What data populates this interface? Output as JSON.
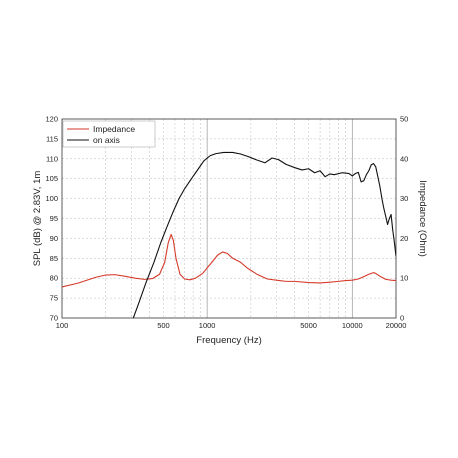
{
  "chart_data": {
    "type": "line",
    "xlabel": "Frequency (Hz)",
    "ylabel": "SPL (dB) @ 2.83V, 1m",
    "y2label": "Impedance (Ohm)",
    "xscale": "log",
    "xlim": [
      100,
      20000
    ],
    "ylim": [
      70,
      120
    ],
    "y2lim": [
      0,
      50
    ],
    "x_ticks": [
      {
        "value": 100,
        "label": "100"
      },
      {
        "value": 500,
        "label": "500"
      },
      {
        "value": 1000,
        "label": "1000"
      },
      {
        "value": 5000,
        "label": "5000"
      },
      {
        "value": 10000,
        "label": "10000"
      },
      {
        "value": 20000,
        "label": "20000"
      }
    ],
    "y_ticks": [
      "70",
      "75",
      "80",
      "85",
      "90",
      "95",
      "100",
      "105",
      "110",
      "115",
      "120"
    ],
    "y2_ticks": [
      "0",
      "10",
      "20",
      "30",
      "40",
      "50"
    ],
    "grid": true,
    "legend_position": "top-left",
    "series": [
      {
        "name": "Impedance",
        "axis": "right",
        "color": "#d63a2a",
        "points": [
          [
            100,
            7.8
          ],
          [
            130,
            8.8
          ],
          [
            170,
            10.2
          ],
          [
            200,
            10.8
          ],
          [
            230,
            10.9
          ],
          [
            270,
            10.5
          ],
          [
            320,
            10.0
          ],
          [
            370,
            9.7
          ],
          [
            420,
            9.9
          ],
          [
            470,
            11.0
          ],
          [
            510,
            14.0
          ],
          [
            540,
            19.0
          ],
          [
            565,
            21.0
          ],
          [
            585,
            19.5
          ],
          [
            610,
            15.0
          ],
          [
            650,
            11.0
          ],
          [
            700,
            9.8
          ],
          [
            760,
            9.6
          ],
          [
            830,
            10.0
          ],
          [
            930,
            11.2
          ],
          [
            1050,
            13.5
          ],
          [
            1180,
            15.8
          ],
          [
            1280,
            16.6
          ],
          [
            1380,
            16.2
          ],
          [
            1500,
            15.0
          ],
          [
            1700,
            14.0
          ],
          [
            1900,
            12.5
          ],
          [
            2200,
            11.0
          ],
          [
            2600,
            9.8
          ],
          [
            3000,
            9.5
          ],
          [
            3500,
            9.2
          ],
          [
            4000,
            9.2
          ],
          [
            5000,
            8.9
          ],
          [
            6000,
            8.8
          ],
          [
            7000,
            9.0
          ],
          [
            8000,
            9.2
          ],
          [
            9000,
            9.4
          ],
          [
            10000,
            9.5
          ],
          [
            11000,
            9.8
          ],
          [
            12000,
            10.4
          ],
          [
            13000,
            11.0
          ],
          [
            14000,
            11.4
          ],
          [
            14500,
            11.2
          ],
          [
            15500,
            10.5
          ],
          [
            17000,
            9.7
          ],
          [
            18500,
            9.5
          ],
          [
            20000,
            9.4
          ]
        ]
      },
      {
        "name": "on axis",
        "axis": "left",
        "color": "#111111",
        "points": [
          [
            310,
            70.0
          ],
          [
            340,
            74.0
          ],
          [
            380,
            79.0
          ],
          [
            430,
            84.0
          ],
          [
            480,
            89.0
          ],
          [
            530,
            93.0
          ],
          [
            580,
            96.5
          ],
          [
            640,
            100.0
          ],
          [
            700,
            102.5
          ],
          [
            780,
            105.0
          ],
          [
            870,
            107.5
          ],
          [
            950,
            109.5
          ],
          [
            1050,
            110.8
          ],
          [
            1150,
            111.3
          ],
          [
            1300,
            111.6
          ],
          [
            1500,
            111.6
          ],
          [
            1700,
            111.2
          ],
          [
            1900,
            110.6
          ],
          [
            2200,
            109.7
          ],
          [
            2500,
            109.0
          ],
          [
            2800,
            110.2
          ],
          [
            3100,
            109.8
          ],
          [
            3500,
            108.6
          ],
          [
            4000,
            107.8
          ],
          [
            4500,
            107.2
          ],
          [
            5000,
            107.5
          ],
          [
            5500,
            106.5
          ],
          [
            6000,
            107.0
          ],
          [
            6500,
            105.5
          ],
          [
            7000,
            106.2
          ],
          [
            7500,
            106.0
          ],
          [
            8500,
            106.5
          ],
          [
            9500,
            106.3
          ],
          [
            10000,
            105.7
          ],
          [
            10500,
            106.3
          ],
          [
            11000,
            106.6
          ],
          [
            11500,
            104.2
          ],
          [
            12000,
            104.5
          ],
          [
            12500,
            106.0
          ],
          [
            13000,
            107.0
          ],
          [
            13500,
            108.5
          ],
          [
            14000,
            108.8
          ],
          [
            14500,
            108.0
          ],
          [
            15000,
            105.5
          ],
          [
            15500,
            103.0
          ],
          [
            16000,
            100.0
          ],
          [
            16500,
            97.5
          ],
          [
            17000,
            95.5
          ],
          [
            17500,
            93.5
          ],
          [
            18000,
            95.0
          ],
          [
            18500,
            96.0
          ],
          [
            19000,
            92.0
          ],
          [
            19500,
            89.0
          ],
          [
            20000,
            85.5
          ]
        ]
      }
    ]
  }
}
